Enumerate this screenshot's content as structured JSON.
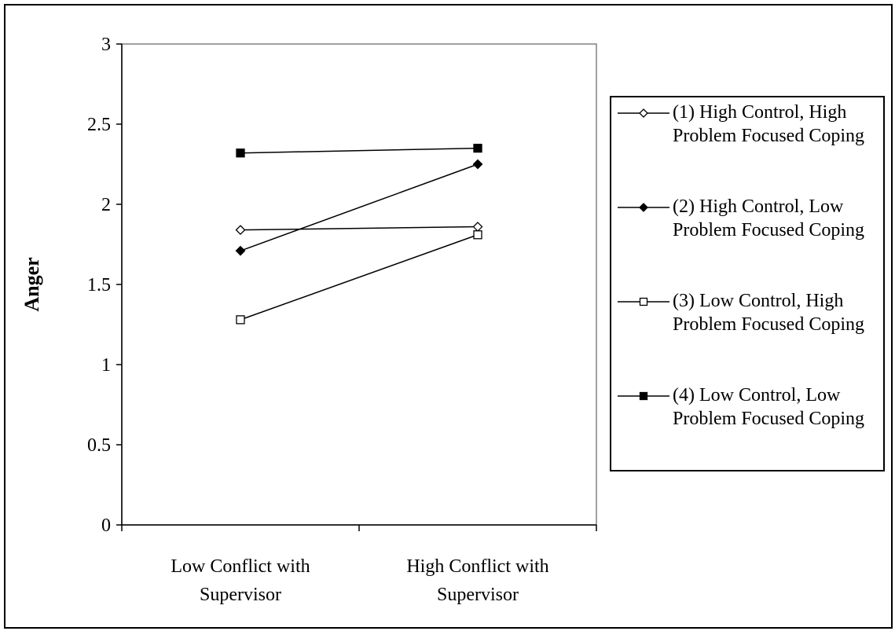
{
  "chart_data": {
    "type": "line",
    "title": "",
    "xlabel": "",
    "ylabel": "Anger",
    "ylim": [
      0,
      3
    ],
    "yticks": [
      "0",
      "0.5",
      "1",
      "1.5",
      "2",
      "2.5",
      "3"
    ],
    "categories": [
      "Low Conflict with Supervisor",
      "High Conflict with Supervisor"
    ],
    "grid": false,
    "legend_position": "right",
    "series": [
      {
        "name": "(1) High Control, High Problem Focused Coping",
        "marker": "diamond-open",
        "values": [
          1.84,
          1.86
        ]
      },
      {
        "name": "(2) High Control, Low Problem Focused Coping",
        "marker": "diamond-filled",
        "values": [
          1.71,
          2.25
        ]
      },
      {
        "name": "(3) Low Control, High Problem Focused Coping",
        "marker": "square-open",
        "values": [
          1.28,
          1.81
        ]
      },
      {
        "name": "(4) Low Control, Low Problem Focused Coping",
        "marker": "square-filled",
        "values": [
          2.32,
          2.35
        ]
      }
    ]
  }
}
